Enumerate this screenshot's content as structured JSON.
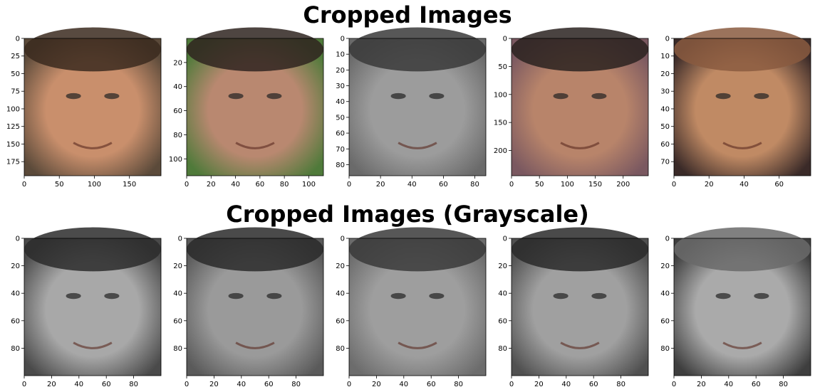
{
  "titles": {
    "top": "Cropped Images",
    "bottom": "Cropped Images (Grayscale)"
  },
  "chart_data": [
    {
      "type": "image",
      "row": "color",
      "mode": "color",
      "xticks": [
        "0",
        "50",
        "100",
        "150"
      ],
      "yticks": [
        "0",
        "25",
        "50",
        "75",
        "100",
        "125",
        "150",
        "175"
      ],
      "xlim": [
        0,
        195
      ],
      "ylim": [
        195,
        0
      ],
      "xtick_values": [
        0,
        50,
        100,
        150
      ],
      "ytick_values": [
        0,
        25,
        50,
        75,
        100,
        125,
        150,
        175
      ]
    },
    {
      "type": "image",
      "row": "color",
      "mode": "color",
      "xticks": [
        "0",
        "20",
        "40",
        "60",
        "80",
        "100"
      ],
      "yticks": [
        "20",
        "40",
        "60",
        "80",
        "100"
      ],
      "xlim": [
        0,
        112
      ],
      "ylim": [
        114,
        0
      ],
      "xtick_values": [
        0,
        20,
        40,
        60,
        80,
        100
      ],
      "ytick_values": [
        20,
        40,
        60,
        80,
        100
      ]
    },
    {
      "type": "image",
      "row": "color",
      "mode": "color",
      "xticks": [
        "0",
        "20",
        "40",
        "60",
        "80"
      ],
      "yticks": [
        "0",
        "10",
        "20",
        "30",
        "40",
        "50",
        "60",
        "70",
        "80"
      ],
      "xlim": [
        0,
        87
      ],
      "ylim": [
        87,
        0
      ],
      "xtick_values": [
        0,
        20,
        40,
        60,
        80
      ],
      "ytick_values": [
        0,
        10,
        20,
        30,
        40,
        50,
        60,
        70,
        80
      ]
    },
    {
      "type": "image",
      "row": "color",
      "mode": "color",
      "xticks": [
        "0",
        "50",
        "100",
        "150",
        "200"
      ],
      "yticks": [
        "0",
        "50",
        "100",
        "150",
        "200"
      ],
      "xlim": [
        0,
        245
      ],
      "ylim": [
        245,
        0
      ],
      "xtick_values": [
        0,
        50,
        100,
        150,
        200
      ],
      "ytick_values": [
        0,
        50,
        100,
        150,
        200
      ]
    },
    {
      "type": "image",
      "row": "color",
      "mode": "color",
      "xticks": [
        "0",
        "20",
        "40",
        "60"
      ],
      "yticks": [
        "0",
        "10",
        "20",
        "30",
        "40",
        "50",
        "60",
        "70"
      ],
      "xlim": [
        0,
        78
      ],
      "ylim": [
        78,
        0
      ],
      "xtick_values": [
        0,
        20,
        40,
        60
      ],
      "ytick_values": [
        0,
        10,
        20,
        30,
        40,
        50,
        60,
        70
      ]
    },
    {
      "type": "image",
      "row": "grayscale",
      "mode": "grayscale",
      "xticks": [
        "0",
        "20",
        "40",
        "60",
        "80"
      ],
      "yticks": [
        "0",
        "20",
        "40",
        "60",
        "80"
      ],
      "xlim": [
        0,
        100
      ],
      "ylim": [
        100,
        0
      ],
      "xtick_values": [
        0,
        20,
        40,
        60,
        80
      ],
      "ytick_values": [
        0,
        20,
        40,
        60,
        80
      ]
    },
    {
      "type": "image",
      "row": "grayscale",
      "mode": "grayscale",
      "xticks": [
        "0",
        "20",
        "40",
        "60",
        "80"
      ],
      "yticks": [
        "0",
        "20",
        "40",
        "60",
        "80"
      ],
      "xlim": [
        0,
        100
      ],
      "ylim": [
        100,
        0
      ],
      "xtick_values": [
        0,
        20,
        40,
        60,
        80
      ],
      "ytick_values": [
        0,
        20,
        40,
        60,
        80
      ]
    },
    {
      "type": "image",
      "row": "grayscale",
      "mode": "grayscale",
      "xticks": [
        "0",
        "20",
        "40",
        "60",
        "80"
      ],
      "yticks": [
        "0",
        "20",
        "40",
        "60",
        "80"
      ],
      "xlim": [
        0,
        100
      ],
      "ylim": [
        100,
        0
      ],
      "xtick_values": [
        0,
        20,
        40,
        60,
        80
      ],
      "ytick_values": [
        0,
        20,
        40,
        60,
        80
      ]
    },
    {
      "type": "image",
      "row": "grayscale",
      "mode": "grayscale",
      "xticks": [
        "0",
        "20",
        "40",
        "60",
        "80"
      ],
      "yticks": [
        "0",
        "20",
        "40",
        "60",
        "80"
      ],
      "xlim": [
        0,
        100
      ],
      "ylim": [
        100,
        0
      ],
      "xtick_values": [
        0,
        20,
        40,
        60,
        80
      ],
      "ytick_values": [
        0,
        20,
        40,
        60,
        80
      ]
    },
    {
      "type": "image",
      "row": "grayscale",
      "mode": "grayscale",
      "xticks": [
        "0",
        "20",
        "40",
        "60",
        "80"
      ],
      "yticks": [
        "0",
        "20",
        "40",
        "60",
        "80"
      ],
      "xlim": [
        0,
        100
      ],
      "ylim": [
        100,
        0
      ],
      "xtick_values": [
        0,
        20,
        40,
        60,
        80
      ],
      "ytick_values": [
        0,
        20,
        40,
        60,
        80
      ]
    }
  ]
}
